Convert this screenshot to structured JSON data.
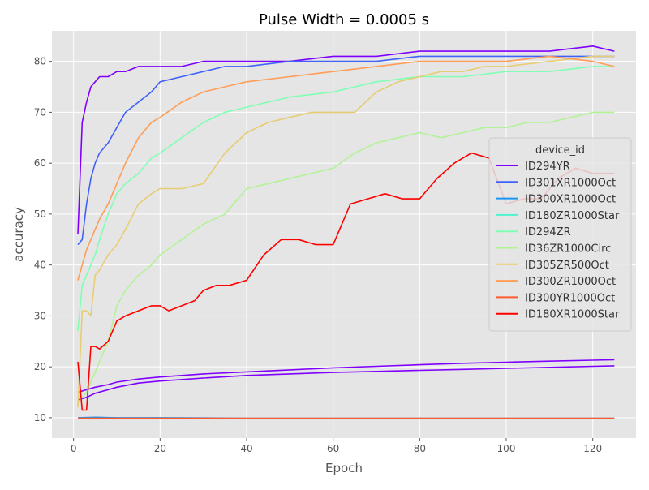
{
  "chart_data": {
    "type": "line",
    "title": "Pulse Width = 0.0005 s",
    "xlabel": "Epoch",
    "ylabel": "accuracy",
    "xlim": [
      -5,
      130
    ],
    "ylim": [
      6,
      86
    ],
    "xticks": [
      0,
      20,
      40,
      60,
      80,
      100,
      120
    ],
    "yticks": [
      10,
      20,
      30,
      40,
      50,
      60,
      70,
      80
    ],
    "grid": true,
    "legend": {
      "title": "device_id",
      "placement": "right"
    },
    "series": [
      {
        "name": "ID294YR",
        "color": "#8000ff",
        "x": [
          1,
          2,
          3,
          4,
          5,
          6,
          8,
          10,
          12,
          15,
          18,
          20,
          25,
          30,
          35,
          40,
          50,
          60,
          70,
          80,
          90,
          100,
          110,
          120,
          125
        ],
        "y": [
          46,
          68,
          72,
          75,
          76,
          77,
          77,
          78,
          78,
          79,
          79,
          79,
          79,
          80,
          80,
          80,
          80,
          81,
          81,
          82,
          82,
          82,
          82,
          83,
          82
        ],
        "extra": [
          {
            "x": [
              1,
              3,
              5,
              8,
              10,
              15,
              20,
              30,
              40,
              50,
              60,
              70,
              80,
              90,
              100,
              110,
              120,
              125
            ],
            "y": [
              13.5,
              14,
              14.8,
              15.5,
              16,
              16.8,
              17.2,
              17.8,
              18.3,
              18.6,
              18.9,
              19.1,
              19.3,
              19.5,
              19.7,
              19.9,
              20.1,
              20.2
            ]
          },
          {
            "x": [
              1,
              3,
              5,
              8,
              10,
              15,
              20,
              30,
              40,
              50,
              60,
              70,
              80,
              90,
              100,
              110,
              120,
              125
            ],
            "y": [
              15,
              15.5,
              16,
              16.5,
              17,
              17.6,
              18,
              18.6,
              19,
              19.4,
              19.8,
              20.1,
              20.4,
              20.7,
              20.9,
              21.1,
              21.3,
              21.4
            ]
          }
        ]
      },
      {
        "name": "ID301XR1000Oct",
        "color": "#4062fa",
        "x": [
          1,
          2,
          3,
          4,
          5,
          6,
          8,
          10,
          12,
          15,
          18,
          20,
          25,
          30,
          35,
          40,
          50,
          60,
          70,
          80,
          90,
          100,
          110,
          120,
          125
        ],
        "y": [
          44,
          45,
          52,
          57,
          60,
          62,
          64,
          67,
          70,
          72,
          74,
          76,
          77,
          78,
          79,
          79,
          80,
          80,
          80,
          81,
          81,
          81,
          81,
          81,
          81
        ]
      },
      {
        "name": "ID300XR1000Oct",
        "color": "#1996f3",
        "x": [
          1,
          5,
          10,
          20,
          40,
          60,
          80,
          100,
          120,
          125
        ],
        "y": [
          10,
          10.1,
          10,
          10,
          9.9,
          9.9,
          9.9,
          9.9,
          9.9,
          9.9
        ]
      },
      {
        "name": "ID180ZR1000Star",
        "color": "#4df3ce",
        "x": [
          1,
          5,
          10,
          20,
          40,
          60,
          80,
          100,
          120,
          125
        ],
        "y": [
          9.8,
          9.8,
          9.8,
          9.8,
          9.8,
          9.8,
          9.8,
          9.8,
          9.8,
          9.8
        ]
      },
      {
        "name": "ID294ZR",
        "color": "#80ffb4",
        "x": [
          1,
          2,
          3,
          4,
          5,
          6,
          8,
          10,
          12,
          15,
          18,
          20,
          25,
          30,
          35,
          40,
          50,
          60,
          70,
          80,
          90,
          100,
          110,
          120,
          125
        ],
        "y": [
          27,
          36,
          38,
          40,
          42,
          45,
          50,
          54,
          56,
          58,
          61,
          62,
          65,
          68,
          70,
          71,
          73,
          74,
          76,
          77,
          77,
          78,
          78,
          79,
          79
        ]
      },
      {
        "name": "ID36ZR1000Circ",
        "color": "#b2f396",
        "x": [
          1,
          3,
          5,
          8,
          10,
          12,
          15,
          18,
          20,
          25,
          30,
          35,
          40,
          45,
          50,
          55,
          60,
          65,
          70,
          75,
          80,
          85,
          90,
          95,
          100,
          105,
          110,
          115,
          120,
          125
        ],
        "y": [
          13,
          15,
          19,
          25,
          32,
          35,
          38,
          40,
          42,
          45,
          48,
          50,
          55,
          56,
          57,
          58,
          59,
          62,
          64,
          65,
          66,
          65,
          66,
          67,
          67,
          68,
          68,
          69,
          70,
          70
        ]
      },
      {
        "name": "ID305ZR500Oct",
        "color": "#e6cd74",
        "x": [
          1,
          2,
          3,
          4,
          5,
          6,
          8,
          10,
          12,
          15,
          18,
          20,
          25,
          30,
          35,
          40,
          45,
          50,
          55,
          60,
          65,
          70,
          75,
          80,
          85,
          90,
          95,
          100,
          110,
          120,
          125
        ],
        "y": [
          12,
          31,
          31,
          30,
          38,
          39,
          42,
          44,
          47,
          52,
          54,
          55,
          55,
          56,
          62,
          66,
          68,
          69,
          70,
          70,
          70,
          74,
          76,
          77,
          78,
          78,
          79,
          79,
          80,
          81,
          81
        ]
      },
      {
        "name": "ID300ZR1000Oct",
        "color": "#ff9d57",
        "x": [
          1,
          2,
          3,
          4,
          5,
          6,
          8,
          10,
          12,
          15,
          18,
          20,
          25,
          30,
          35,
          40,
          50,
          60,
          70,
          80,
          90,
          100,
          110,
          120,
          125
        ],
        "y": [
          37,
          40,
          43,
          45,
          47,
          49,
          52,
          56,
          60,
          65,
          68,
          69,
          72,
          74,
          75,
          76,
          77,
          78,
          79,
          80,
          80,
          80,
          81,
          80,
          79
        ]
      },
      {
        "name": "ID300YR1000Oct",
        "color": "#ff5a2e",
        "x": [
          1,
          5,
          10,
          20,
          40,
          60,
          80,
          100,
          120,
          125
        ],
        "y": [
          9.9,
          9.9,
          9.9,
          9.9,
          9.9,
          9.9,
          9.9,
          9.9,
          9.9,
          9.9
        ]
      },
      {
        "name": "ID180XR1000Star",
        "color": "#ff0000",
        "x": [
          1,
          2,
          3,
          4,
          5,
          6,
          8,
          10,
          12,
          15,
          18,
          20,
          22,
          25,
          28,
          30,
          33,
          36,
          40,
          44,
          48,
          52,
          56,
          60,
          64,
          68,
          72,
          76,
          80,
          84,
          88,
          92,
          96,
          100,
          104,
          108,
          112,
          116,
          120,
          125
        ],
        "y": [
          21,
          11.5,
          11.5,
          24,
          24,
          23.5,
          25,
          29,
          30,
          31,
          32,
          32,
          31,
          32,
          33,
          35,
          36,
          36,
          37,
          42,
          45,
          45,
          44,
          44,
          52,
          53,
          54,
          53,
          53,
          57,
          60,
          62,
          61,
          52,
          53,
          53,
          57,
          59,
          58,
          58
        ]
      }
    ]
  }
}
